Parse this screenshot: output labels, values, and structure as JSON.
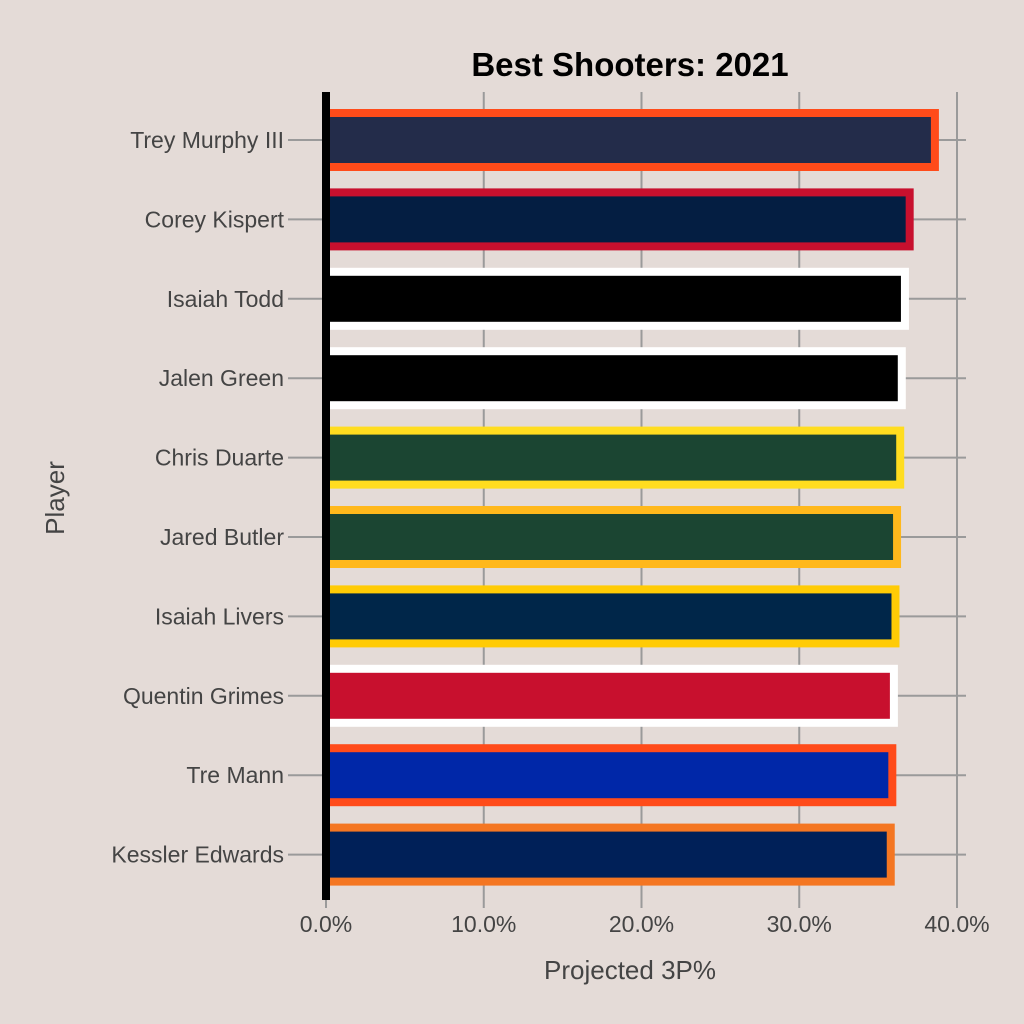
{
  "chart_data": {
    "type": "bar",
    "orientation": "horizontal",
    "title": "Best Shooters: 2021",
    "xlabel": "Projected 3P%",
    "ylabel": "Player",
    "xlim": [
      0,
      0.4
    ],
    "x_ticks": [
      0,
      0.1,
      0.2,
      0.3,
      0.4
    ],
    "x_tick_labels": [
      "0.0%",
      "10.0%",
      "20.0%",
      "30.0%",
      "40.0%"
    ],
    "grid": true,
    "legend": "none",
    "categories": [
      "Trey Murphy III",
      "Corey Kispert",
      "Isaiah Todd",
      "Jalen Green",
      "Chris Duarte",
      "Jared Butler",
      "Isaiah Livers",
      "Quentin Grimes",
      "Tre Mann",
      "Kessler Edwards"
    ],
    "values": [
      0.386,
      0.37,
      0.367,
      0.365,
      0.364,
      0.362,
      0.361,
      0.36,
      0.359,
      0.358
    ],
    "fill_colors": [
      "#232c4a",
      "#041e42",
      "#000000",
      "#000000",
      "#1b4532",
      "#1b4532",
      "#002649",
      "#c8102e",
      "#0027a8",
      "#002058"
    ],
    "outline_colors": [
      "#ff4b1a",
      "#c8102e",
      "#ffffff",
      "#ffffff",
      "#ffdd1f",
      "#ffb81c",
      "#ffcb05",
      "#ffffff",
      "#ff4b1a",
      "#f47622"
    ]
  },
  "colors": {
    "background": "#e4dbd7",
    "grid": "#9a9a9a",
    "zero_line": "#000000"
  }
}
